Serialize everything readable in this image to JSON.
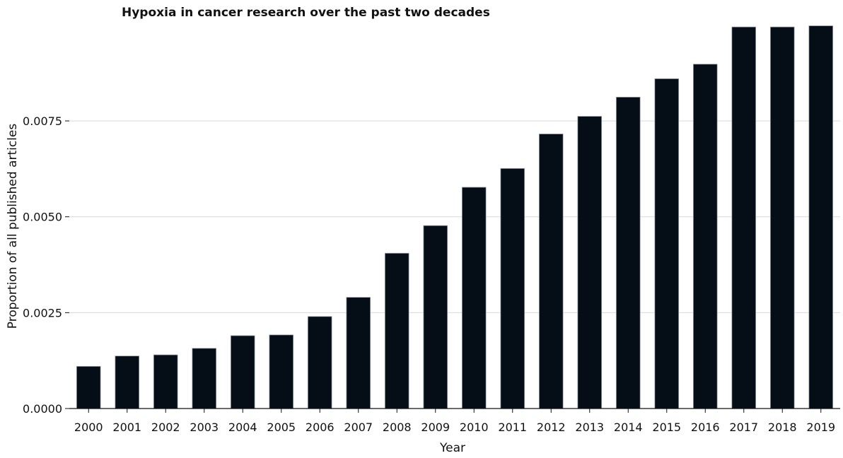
{
  "chart_data": {
    "type": "bar",
    "title": "Hypoxia in cancer research over the past two decades",
    "xlabel": "Year",
    "ylabel": "Proportion of all published articles",
    "categories": [
      "2000",
      "2001",
      "2002",
      "2003",
      "2004",
      "2005",
      "2006",
      "2007",
      "2008",
      "2009",
      "2010",
      "2011",
      "2012",
      "2013",
      "2014",
      "2015",
      "2016",
      "2017",
      "2018",
      "2019"
    ],
    "values": [
      0.0011,
      0.00137,
      0.0014,
      0.00157,
      0.0019,
      0.00192,
      0.0024,
      0.0029,
      0.00405,
      0.00477,
      0.00577,
      0.00626,
      0.00716,
      0.00762,
      0.00812,
      0.0086,
      0.00898,
      0.00995,
      0.00995,
      0.00998
    ],
    "ylim": [
      0,
      0.0101
    ],
    "yticks": [
      "0.0000",
      "0.0025",
      "0.0050",
      "0.0075"
    ],
    "ytick_values": [
      0,
      0.0025,
      0.005,
      0.0075
    ],
    "grid": true,
    "colors": {
      "bar": "#050d16",
      "grid": "#d9d9d9",
      "axis": "#111111"
    }
  }
}
